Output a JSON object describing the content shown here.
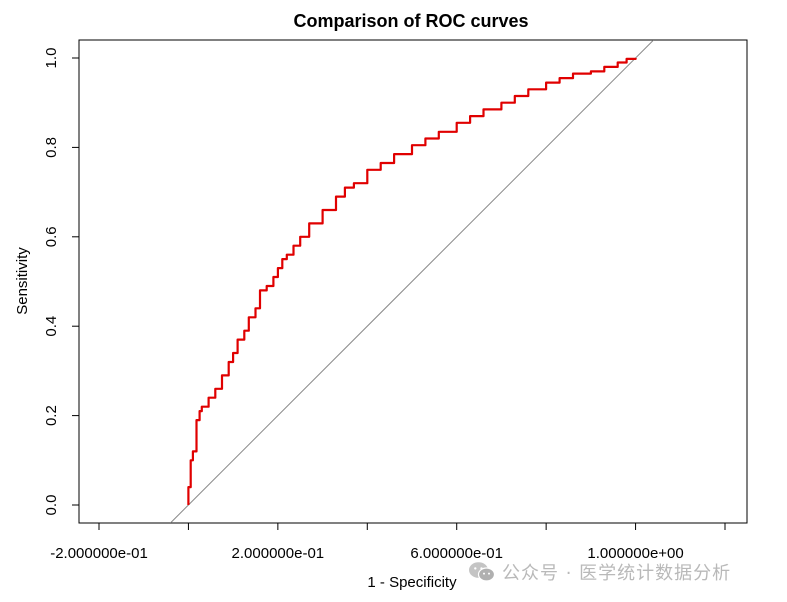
{
  "chart_data": {
    "type": "line",
    "title": "Comparison of ROC curves",
    "xlabel": "1 - Specificity",
    "ylabel": "Sensitivity",
    "xlim": [
      -0.2,
      1.2
    ],
    "ylim": [
      0,
      1
    ],
    "x_ticks": [
      -0.2,
      0.0,
      0.2,
      0.4,
      0.6,
      0.8,
      1.0,
      1.2
    ],
    "x_tick_labels": [
      "-2.000000e-01",
      "2.000000e-01",
      "6.000000e-01",
      "1.000000e+00"
    ],
    "x_tick_label_values": [
      -0.2,
      0.2,
      0.6,
      1.0
    ],
    "y_ticks": [
      0.0,
      0.2,
      0.4,
      0.6,
      0.8,
      1.0
    ],
    "y_tick_labels": [
      "0.0",
      "0.2",
      "0.4",
      "0.6",
      "0.8",
      "1.0"
    ],
    "reference_line": {
      "name": "chance diagonal",
      "color": "#888888",
      "x": [
        -0.04,
        1.04
      ],
      "y": [
        -0.04,
        1.04
      ]
    },
    "series": [
      {
        "name": "ROC curve",
        "color": "#e00000",
        "x": [
          0.0,
          0.0,
          0.005,
          0.01,
          0.018,
          0.025,
          0.03,
          0.045,
          0.06,
          0.075,
          0.09,
          0.1,
          0.11,
          0.125,
          0.135,
          0.15,
          0.16,
          0.175,
          0.19,
          0.2,
          0.21,
          0.22,
          0.235,
          0.25,
          0.27,
          0.3,
          0.33,
          0.35,
          0.37,
          0.4,
          0.43,
          0.46,
          0.5,
          0.53,
          0.56,
          0.6,
          0.63,
          0.66,
          0.7,
          0.73,
          0.76,
          0.8,
          0.83,
          0.86,
          0.9,
          0.93,
          0.96,
          0.98,
          1.0
        ],
        "y": [
          0.0,
          0.04,
          0.1,
          0.12,
          0.19,
          0.21,
          0.22,
          0.24,
          0.26,
          0.29,
          0.32,
          0.34,
          0.37,
          0.39,
          0.42,
          0.44,
          0.48,
          0.49,
          0.51,
          0.53,
          0.55,
          0.56,
          0.58,
          0.6,
          0.63,
          0.66,
          0.69,
          0.71,
          0.72,
          0.75,
          0.765,
          0.785,
          0.805,
          0.82,
          0.835,
          0.855,
          0.87,
          0.885,
          0.9,
          0.915,
          0.93,
          0.945,
          0.955,
          0.965,
          0.97,
          0.98,
          0.99,
          0.998,
          1.0
        ]
      }
    ]
  },
  "watermark": {
    "icon": "wechat-icon",
    "text": "公众号 · 医学统计数据分析"
  }
}
